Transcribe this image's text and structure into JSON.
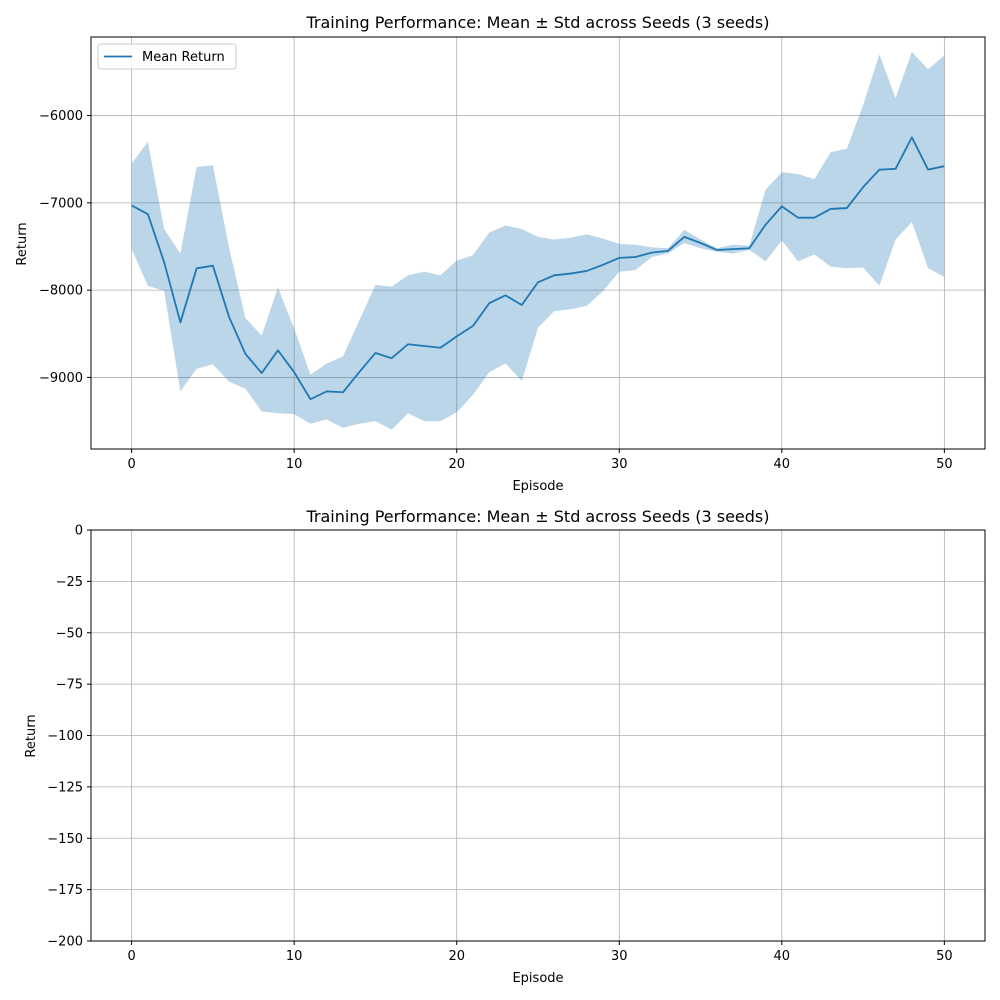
{
  "chart_data": [
    {
      "type": "line",
      "title": "Training Performance: Mean ± Std across Seeds (3 seeds)",
      "xlabel": "Episode",
      "ylabel": "Return",
      "xlim": [
        -2.5,
        52.5
      ],
      "ylim": [
        -9820,
        -5100
      ],
      "xticks": [
        0,
        10,
        20,
        30,
        40,
        50
      ],
      "yticks": [
        -9000,
        -8000,
        -7000,
        -6000
      ],
      "xtick_labels": [
        "0",
        "10",
        "20",
        "30",
        "40",
        "50"
      ],
      "ytick_labels": [
        "−9000",
        "−8000",
        "−7000",
        "−6000"
      ],
      "grid": true,
      "legend": {
        "position": "top-left",
        "entries": [
          "Mean Return"
        ]
      },
      "colors": {
        "line": "#1f77b4",
        "band": "#1f77b4"
      },
      "series": [
        {
          "name": "Mean Return",
          "x": [
            0,
            1,
            2,
            3,
            4,
            5,
            6,
            7,
            8,
            9,
            10,
            11,
            12,
            13,
            14,
            15,
            16,
            17,
            18,
            19,
            20,
            21,
            22,
            23,
            24,
            25,
            26,
            27,
            28,
            29,
            30,
            31,
            32,
            33,
            34,
            35,
            36,
            37,
            38,
            39,
            40,
            41,
            42,
            43,
            44,
            45,
            46,
            47,
            48,
            49,
            50
          ],
          "mean": [
            -7030,
            -7130,
            -7680,
            -8370,
            -7750,
            -7720,
            -8310,
            -8730,
            -8950,
            -8690,
            -8940,
            -9250,
            -9160,
            -9170,
            -8940,
            -8720,
            -8780,
            -8620,
            -8640,
            -8660,
            -8530,
            -8410,
            -8150,
            -8060,
            -8170,
            -7910,
            -7830,
            -7810,
            -7780,
            -7710,
            -7630,
            -7620,
            -7570,
            -7550,
            -7390,
            -7460,
            -7540,
            -7530,
            -7520,
            -7250,
            -7040,
            -7170,
            -7170,
            -7070,
            -7060,
            -6820,
            -6620,
            -6610,
            -6250,
            -6620,
            -6580
          ],
          "upper": [
            -6550,
            -6300,
            -7300,
            -7580,
            -6590,
            -6570,
            -7520,
            -8320,
            -8520,
            -7970,
            -8440,
            -8970,
            -8840,
            -8760,
            -8350,
            -7940,
            -7960,
            -7830,
            -7790,
            -7830,
            -7660,
            -7600,
            -7340,
            -7260,
            -7300,
            -7390,
            -7420,
            -7400,
            -7360,
            -7410,
            -7470,
            -7480,
            -7510,
            -7520,
            -7310,
            -7420,
            -7520,
            -7480,
            -7490,
            -6850,
            -6650,
            -6670,
            -6730,
            -6420,
            -6380,
            -5880,
            -5300,
            -5800,
            -5270,
            -5470,
            -5310
          ],
          "lower": [
            -7530,
            -7950,
            -8010,
            -9160,
            -8900,
            -8850,
            -9050,
            -9130,
            -9390,
            -9410,
            -9420,
            -9530,
            -9480,
            -9580,
            -9530,
            -9500,
            -9600,
            -9410,
            -9500,
            -9500,
            -9400,
            -9200,
            -8940,
            -8840,
            -9040,
            -8430,
            -8240,
            -8220,
            -8180,
            -8010,
            -7790,
            -7770,
            -7620,
            -7580,
            -7460,
            -7520,
            -7560,
            -7580,
            -7540,
            -7670,
            -7430,
            -7670,
            -7590,
            -7730,
            -7750,
            -7740,
            -7950,
            -7420,
            -7220,
            -7750,
            -7850
          ]
        }
      ]
    },
    {
      "type": "line",
      "title": "Training Performance: Mean ± Std across Seeds (3 seeds)",
      "xlabel": "Episode",
      "ylabel": "Return",
      "xlim": [
        -2.5,
        52.5
      ],
      "ylim": [
        -200,
        0
      ],
      "xticks": [
        0,
        10,
        20,
        30,
        40,
        50
      ],
      "yticks": [
        -200,
        -175,
        -150,
        -125,
        -100,
        -75,
        -50,
        -25,
        0
      ],
      "xtick_labels": [
        "0",
        "10",
        "20",
        "30",
        "40",
        "50"
      ],
      "ytick_labels": [
        "−200",
        "−175",
        "−150",
        "−125",
        "−100",
        "−75",
        "−50",
        "−25",
        "0"
      ],
      "grid": true,
      "series": []
    }
  ]
}
